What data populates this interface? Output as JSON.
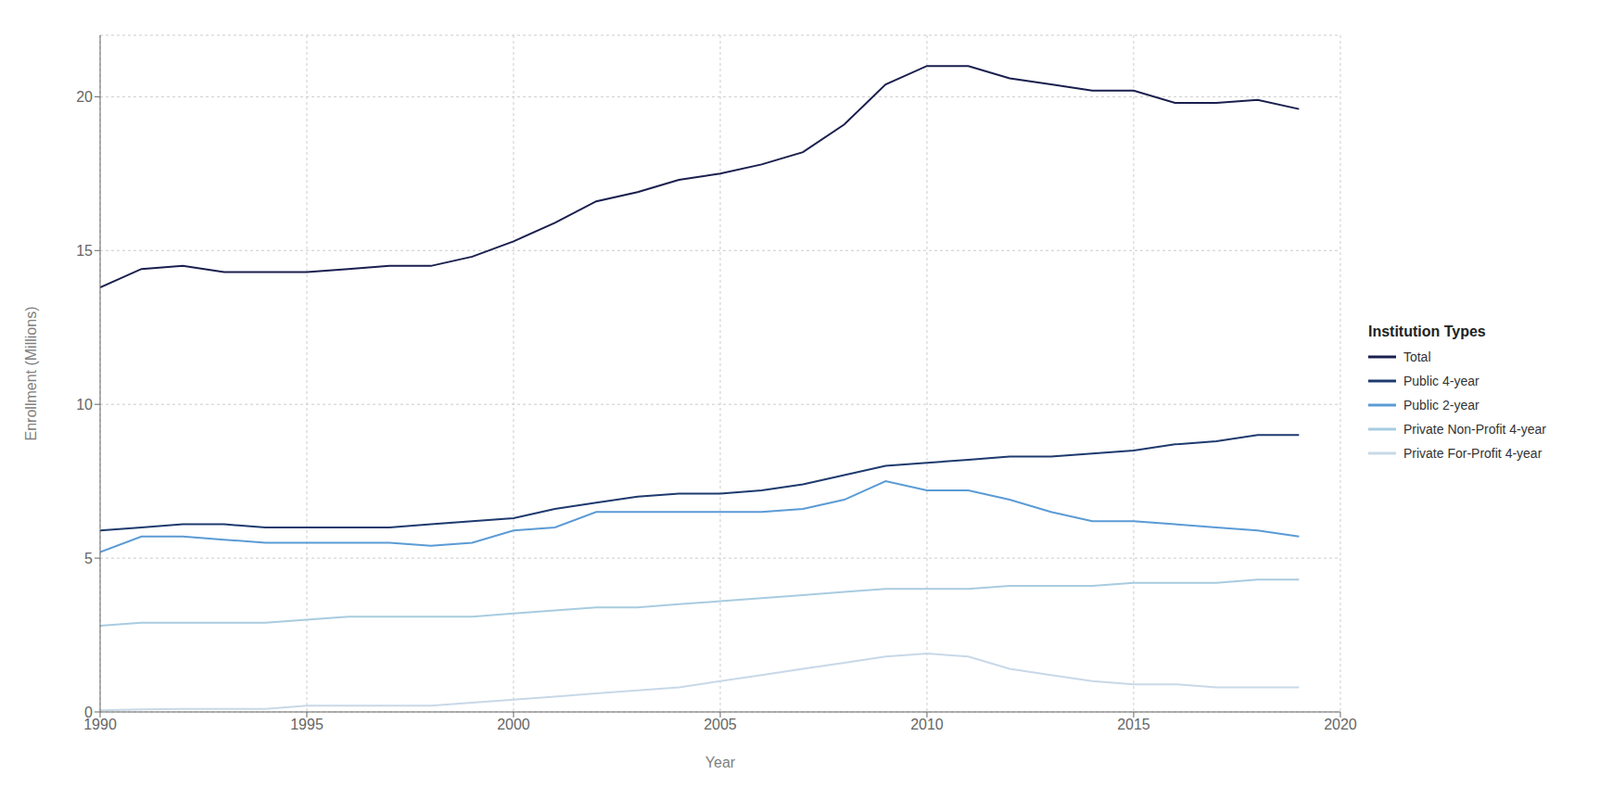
{
  "chart_data": {
    "type": "line",
    "x_label": "Year",
    "y_label": "Enrollment (Millions)",
    "legend_title": "Institution Types",
    "legend": "right",
    "grid": true,
    "xlim": [
      1990,
      2020
    ],
    "xticks": [
      1990,
      1995,
      2000,
      2005,
      2010,
      2015,
      2020
    ],
    "ylim": [
      0,
      22
    ],
    "yticks": [
      0,
      5,
      10,
      15,
      20
    ],
    "x": [
      1990,
      1991,
      1992,
      1993,
      1994,
      1995,
      1996,
      1997,
      1998,
      1999,
      2000,
      2001,
      2002,
      2003,
      2004,
      2005,
      2006,
      2007,
      2008,
      2009,
      2010,
      2011,
      2012,
      2013,
      2014,
      2015,
      2016,
      2017,
      2018,
      2019
    ],
    "series": [
      {
        "name": "Total",
        "color": "#1a1f4e",
        "values": [
          13.8,
          14.4,
          14.5,
          14.3,
          14.3,
          14.3,
          14.4,
          14.5,
          14.5,
          14.8,
          15.3,
          15.9,
          16.6,
          16.9,
          17.3,
          17.5,
          17.8,
          18.2,
          19.1,
          20.4,
          21.0,
          21.0,
          20.6,
          20.4,
          20.2,
          20.2,
          19.8,
          19.8,
          19.9,
          19.6
        ]
      },
      {
        "name": "Public 4-year",
        "color": "#1e3a6e",
        "values": [
          5.9,
          6.0,
          6.1,
          6.1,
          6.0,
          6.0,
          6.0,
          6.0,
          6.1,
          6.2,
          6.3,
          6.6,
          6.8,
          7.0,
          7.1,
          7.1,
          7.2,
          7.4,
          7.7,
          8.0,
          8.1,
          8.2,
          8.3,
          8.3,
          8.4,
          8.5,
          8.7,
          8.8,
          9.0,
          9.0
        ]
      },
      {
        "name": "Public 2-year",
        "color": "#5b9bd5",
        "values": [
          5.2,
          5.7,
          5.7,
          5.6,
          5.5,
          5.5,
          5.5,
          5.5,
          5.4,
          5.5,
          5.9,
          6.0,
          6.5,
          6.5,
          6.5,
          6.5,
          6.5,
          6.6,
          6.9,
          7.5,
          7.2,
          7.2,
          6.9,
          6.5,
          6.2,
          6.2,
          6.1,
          6.0,
          5.9,
          5.7
        ]
      },
      {
        "name": "Private Non-Profit 4-year",
        "color": "#a8cce0",
        "values": [
          2.8,
          2.9,
          2.9,
          2.9,
          2.9,
          3.0,
          3.1,
          3.1,
          3.1,
          3.1,
          3.2,
          3.3,
          3.4,
          3.4,
          3.5,
          3.6,
          3.7,
          3.8,
          3.9,
          4.0,
          4.0,
          4.0,
          4.1,
          4.1,
          4.1,
          4.2,
          4.2,
          4.2,
          4.3,
          4.3
        ]
      },
      {
        "name": "Private For-Profit 4-year",
        "color": "#c8d8e8",
        "values": [
          0.05,
          0.08,
          0.1,
          0.1,
          0.1,
          0.2,
          0.2,
          0.2,
          0.2,
          0.3,
          0.4,
          0.5,
          0.6,
          0.7,
          0.8,
          1.0,
          1.2,
          1.4,
          1.6,
          1.8,
          1.9,
          1.8,
          1.4,
          1.2,
          1.0,
          0.9,
          0.9,
          0.8,
          0.8,
          0.8
        ]
      }
    ]
  }
}
